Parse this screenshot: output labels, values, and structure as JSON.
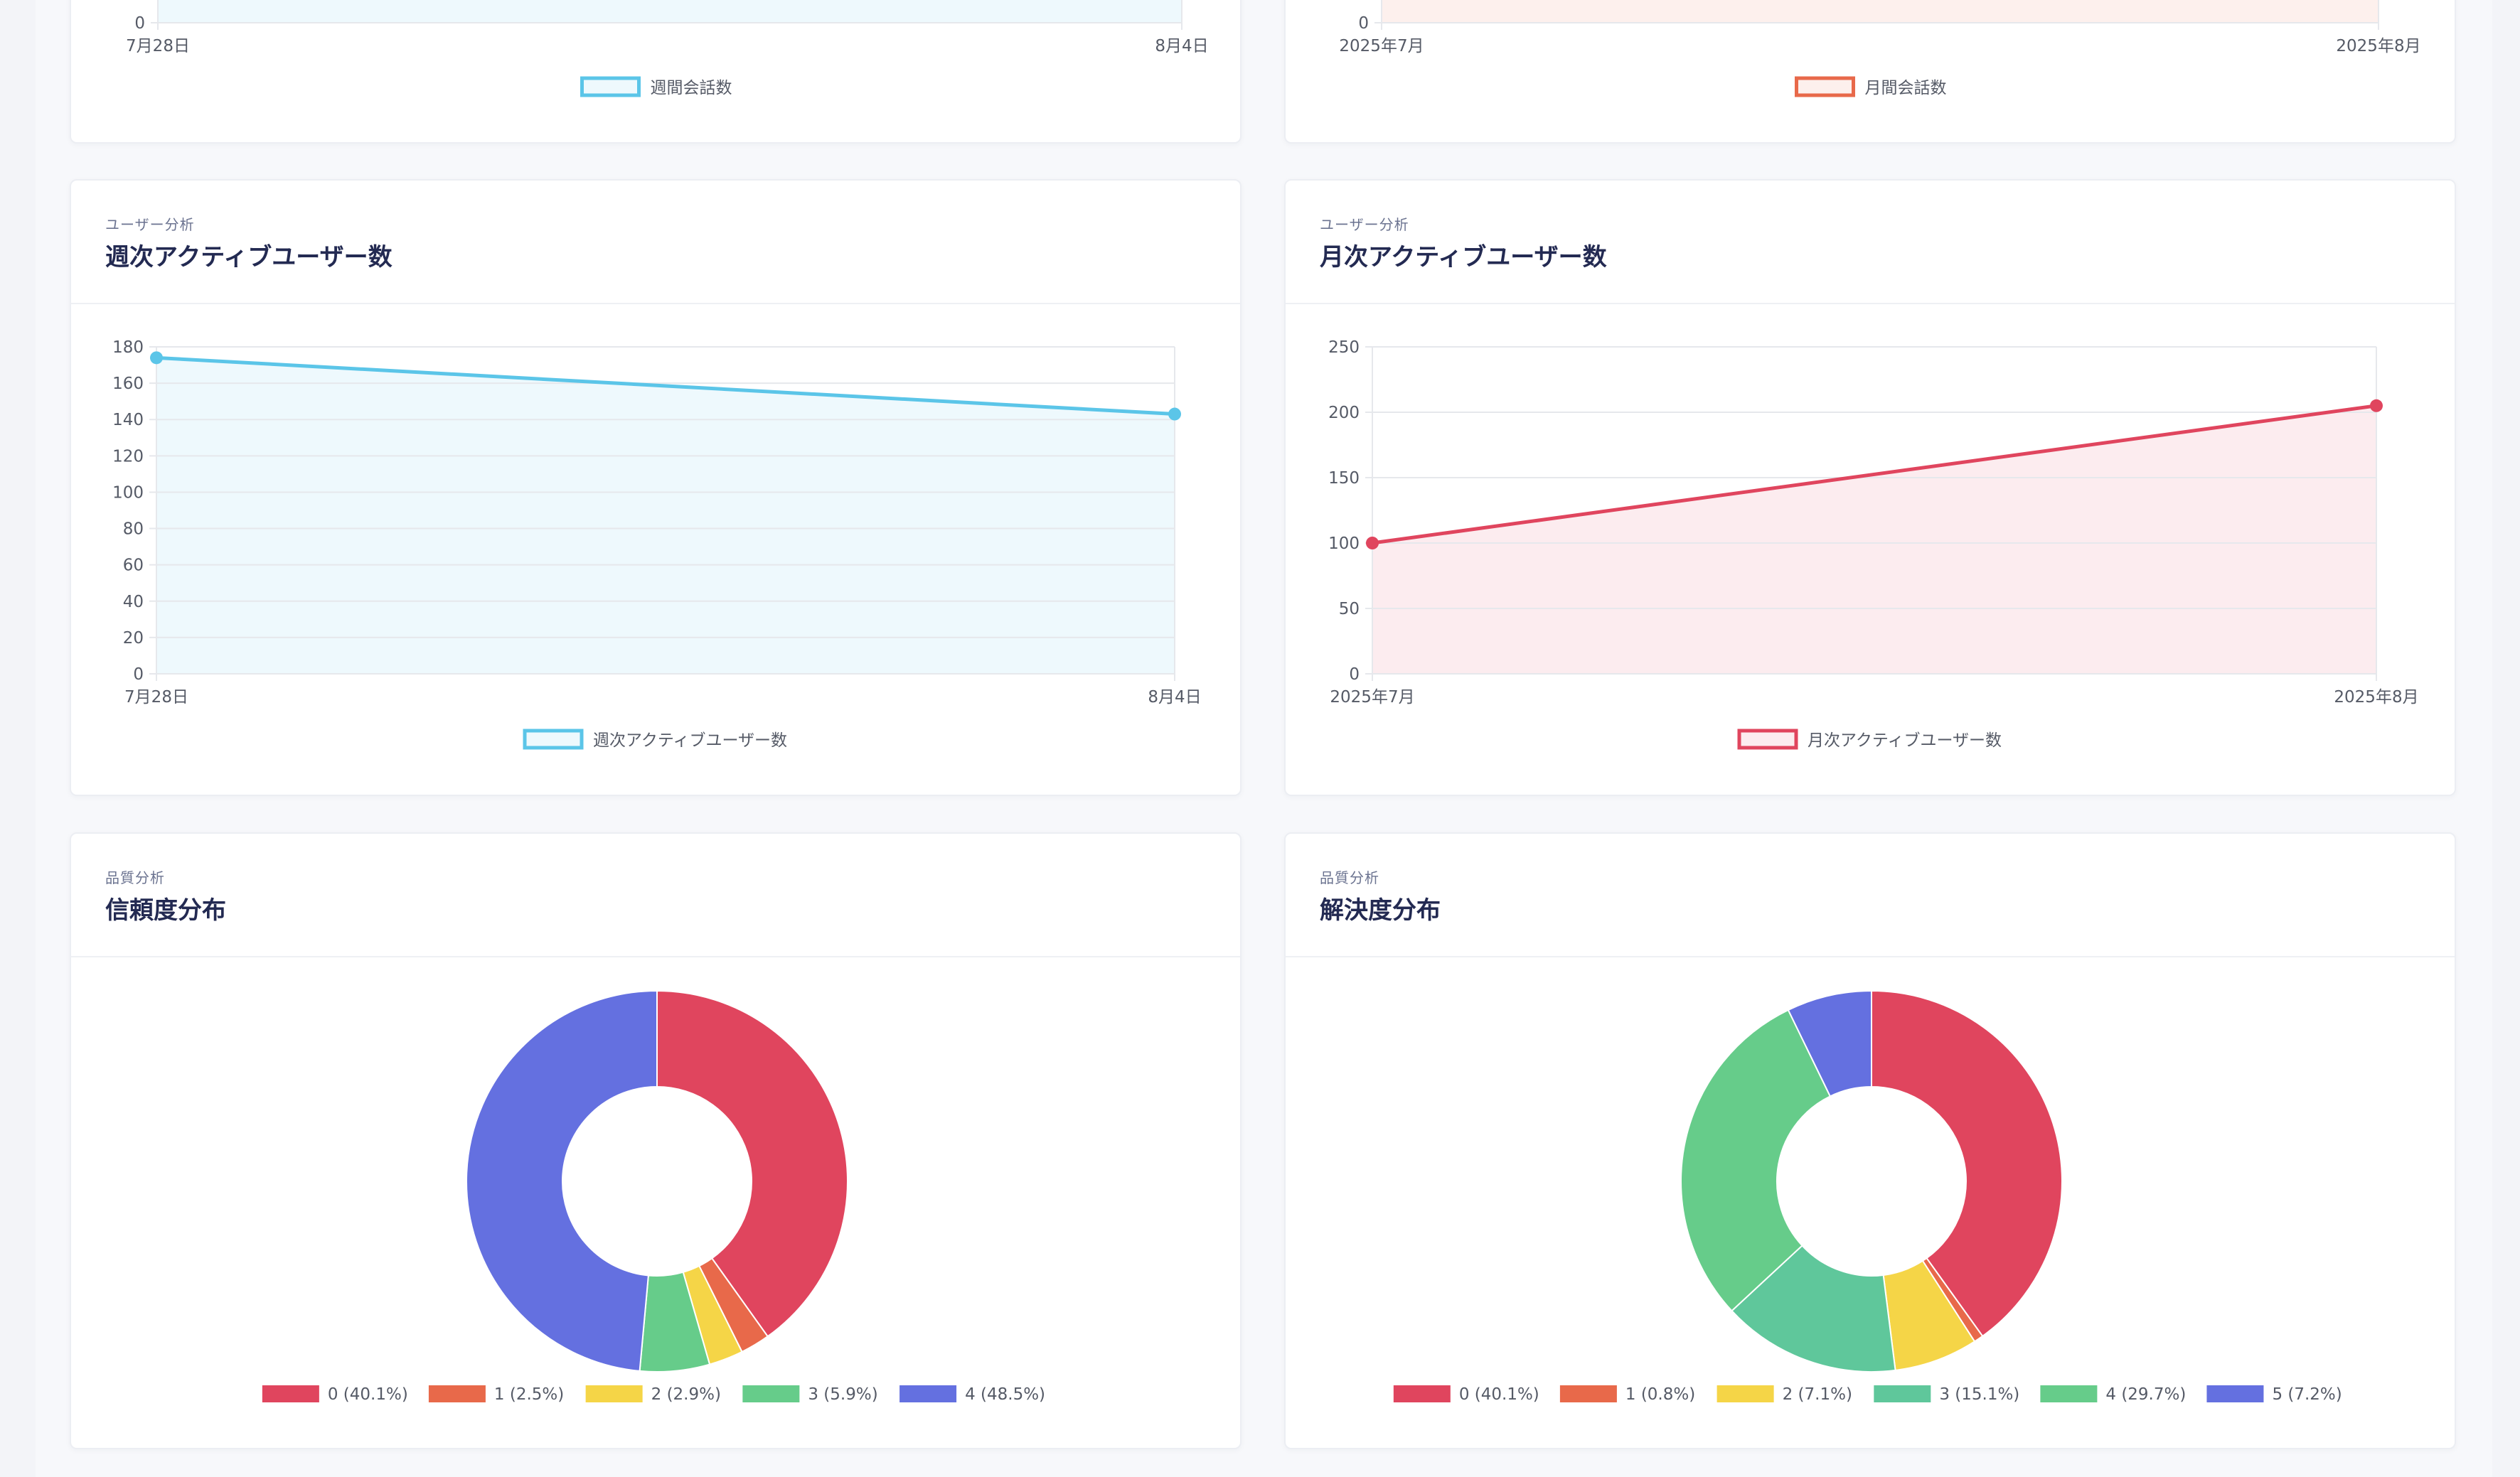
{
  "cards": {
    "weekly_conversations": {
      "chart_data": {
        "type": "area",
        "x": [
          "7月28日",
          "8月4日"
        ],
        "ylim": [
          0,
          null
        ],
        "y_ticks": [
          "0"
        ],
        "series": [
          {
            "name": "週間会話数",
            "values": [
              null,
              null
            ],
            "color": "#5bc5e8"
          }
        ],
        "legend": "bottom",
        "grid": true
      }
    },
    "monthly_conversations": {
      "chart_data": {
        "type": "area",
        "x": [
          "2025年7月",
          "2025年8月"
        ],
        "ylim": [
          0,
          null
        ],
        "y_ticks": [
          "0"
        ],
        "series": [
          {
            "name": "月間会話数",
            "values": [
              null,
              null
            ],
            "color": "#e8694a"
          }
        ],
        "legend": "bottom",
        "grid": true
      }
    },
    "weekly_active_users": {
      "subtitle": "ユーザー分析",
      "title": "週次アクティブユーザー数",
      "chart_data": {
        "type": "area",
        "x": [
          "7月28日",
          "8月4日"
        ],
        "ylim": [
          0,
          180
        ],
        "y_ticks": [
          "0",
          "20",
          "40",
          "60",
          "80",
          "100",
          "120",
          "140",
          "160",
          "180"
        ],
        "series": [
          {
            "name": "週次アクティブユーザー数",
            "values": [
              174,
              143
            ],
            "color": "#5bc5e8"
          }
        ],
        "legend": "bottom",
        "grid": true
      }
    },
    "monthly_active_users": {
      "subtitle": "ユーザー分析",
      "title": "月次アクティブユーザー数",
      "chart_data": {
        "type": "area",
        "x": [
          "2025年7月",
          "2025年8月"
        ],
        "ylim": [
          0,
          250
        ],
        "y_ticks": [
          "0",
          "50",
          "100",
          "150",
          "200",
          "250"
        ],
        "series": [
          {
            "name": "月次アクティブユーザー数",
            "values": [
              100,
              205
            ],
            "color": "#e0455e"
          }
        ],
        "legend": "bottom",
        "grid": true
      }
    },
    "confidence_distribution": {
      "subtitle": "品質分析",
      "title": "信頼度分布",
      "chart_data": {
        "type": "pie",
        "donut": true,
        "slices": [
          {
            "label": "0 (40.1%)",
            "value": 40.1,
            "color": "#e0455e"
          },
          {
            "label": "1 (2.5%)",
            "value": 2.5,
            "color": "#e8694a"
          },
          {
            "label": "2 (2.9%)",
            "value": 2.9,
            "color": "#f5d547"
          },
          {
            "label": "3 (5.9%)",
            "value": 5.9,
            "color": "#66cc8a"
          },
          {
            "label": "4 (48.5%)",
            "value": 48.5,
            "color": "#6470e0"
          }
        ],
        "legend": "bottom"
      }
    },
    "resolution_distribution": {
      "subtitle": "品質分析",
      "title": "解決度分布",
      "chart_data": {
        "type": "pie",
        "donut": true,
        "slices": [
          {
            "label": "0 (40.1%)",
            "value": 40.1,
            "color": "#e0455e"
          },
          {
            "label": "1 (0.8%)",
            "value": 0.8,
            "color": "#e8694a"
          },
          {
            "label": "2 (7.1%)",
            "value": 7.1,
            "color": "#f5d547"
          },
          {
            "label": "3 (15.1%)",
            "value": 15.1,
            "color": "#5fc79b"
          },
          {
            "label": "4 (29.7%)",
            "value": 29.7,
            "color": "#66cc8a"
          },
          {
            "label": "5 (7.2%)",
            "value": 7.2,
            "color": "#6470e0"
          }
        ],
        "legend": "bottom"
      }
    }
  }
}
